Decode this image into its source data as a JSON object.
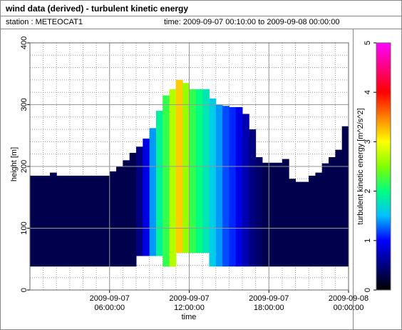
{
  "header": {
    "title": "wind data (derived) - turbulent kinetic energy",
    "station": "station : METEOCAT1",
    "time_range": "time: 2009-09-07 00:10:00 to 2009-09-08 00:00:00"
  },
  "chart_data": {
    "type": "heatmap",
    "xlabel": "time",
    "ylabel": "height [m]",
    "xlim": [
      0,
      24
    ],
    "ylim": [
      0,
      400
    ],
    "xticks": [
      {
        "value": 6,
        "label": "2009-09-07\n06:00:00"
      },
      {
        "value": 12,
        "label": "2009-09-07\n12:00:00"
      },
      {
        "value": 18,
        "label": "2009-09-07\n18:00:00"
      },
      {
        "value": 24,
        "label": "2009-09-08\n00:00:00"
      }
    ],
    "yticks": [
      0,
      100,
      200,
      300,
      400
    ],
    "grid": true,
    "x": [
      0.25,
      0.75,
      1.25,
      1.75,
      2.25,
      2.75,
      3.25,
      3.75,
      4.25,
      4.75,
      5.25,
      5.75,
      6.25,
      6.75,
      7.25,
      7.75,
      8.25,
      8.75,
      9.25,
      9.75,
      10.25,
      10.75,
      11.25,
      11.75,
      12.25,
      12.75,
      13.25,
      13.75,
      14.25,
      14.75,
      15.25,
      15.75,
      16.25,
      16.75,
      17.25,
      17.75,
      18.25,
      18.75,
      19.25,
      19.75,
      20.25,
      20.75,
      21.25,
      21.75,
      22.25,
      22.75,
      23.25,
      23.75
    ],
    "top": [
      185,
      185,
      185,
      190,
      185,
      185,
      185,
      185,
      185,
      185,
      185,
      185,
      192,
      200,
      210,
      222,
      232,
      245,
      262,
      290,
      315,
      325,
      340,
      335,
      325,
      325,
      325,
      310,
      300,
      298,
      296,
      296,
      285,
      260,
      215,
      206,
      206,
      206,
      212,
      180,
      175,
      175,
      185,
      190,
      205,
      215,
      227,
      265
    ],
    "bottom": [
      38,
      38,
      38,
      38,
      38,
      38,
      38,
      38,
      38,
      38,
      38,
      38,
      38,
      38,
      38,
      38,
      55,
      55,
      55,
      55,
      38,
      38,
      60,
      60,
      60,
      60,
      60,
      38,
      38,
      38,
      38,
      38,
      38,
      38,
      38,
      38,
      38,
      38,
      38,
      38,
      38,
      38,
      38,
      38,
      38,
      38,
      38,
      38
    ],
    "tke": [
      0.3,
      0.3,
      0.3,
      0.3,
      0.3,
      0.3,
      0.3,
      0.3,
      0.3,
      0.3,
      0.3,
      0.3,
      0.3,
      0.3,
      0.3,
      0.3,
      0.5,
      0.9,
      1.4,
      1.9,
      2.2,
      2.7,
      3.2,
      2.6,
      2.2,
      2.0,
      1.8,
      1.6,
      1.4,
      1.2,
      1.1,
      0.9,
      0.7,
      0.5,
      0.4,
      0.3,
      0.3,
      0.3,
      0.3,
      0.3,
      0.3,
      0.3,
      0.3,
      0.3,
      0.3,
      0.3,
      0.3,
      0.3
    ],
    "colorbar": {
      "label": "turbulent kinetic energy [m^2/s^2]",
      "lim": [
        0,
        5
      ],
      "ticks": [
        0,
        1,
        2,
        3,
        4,
        5
      ],
      "colorscale": [
        "#000000",
        "#000080",
        "#0000ff",
        "#00c0ff",
        "#00ff80",
        "#80ff00",
        "#ffff00",
        "#ff8000",
        "#ff0000",
        "#ff0080",
        "#ff00ff"
      ]
    }
  }
}
